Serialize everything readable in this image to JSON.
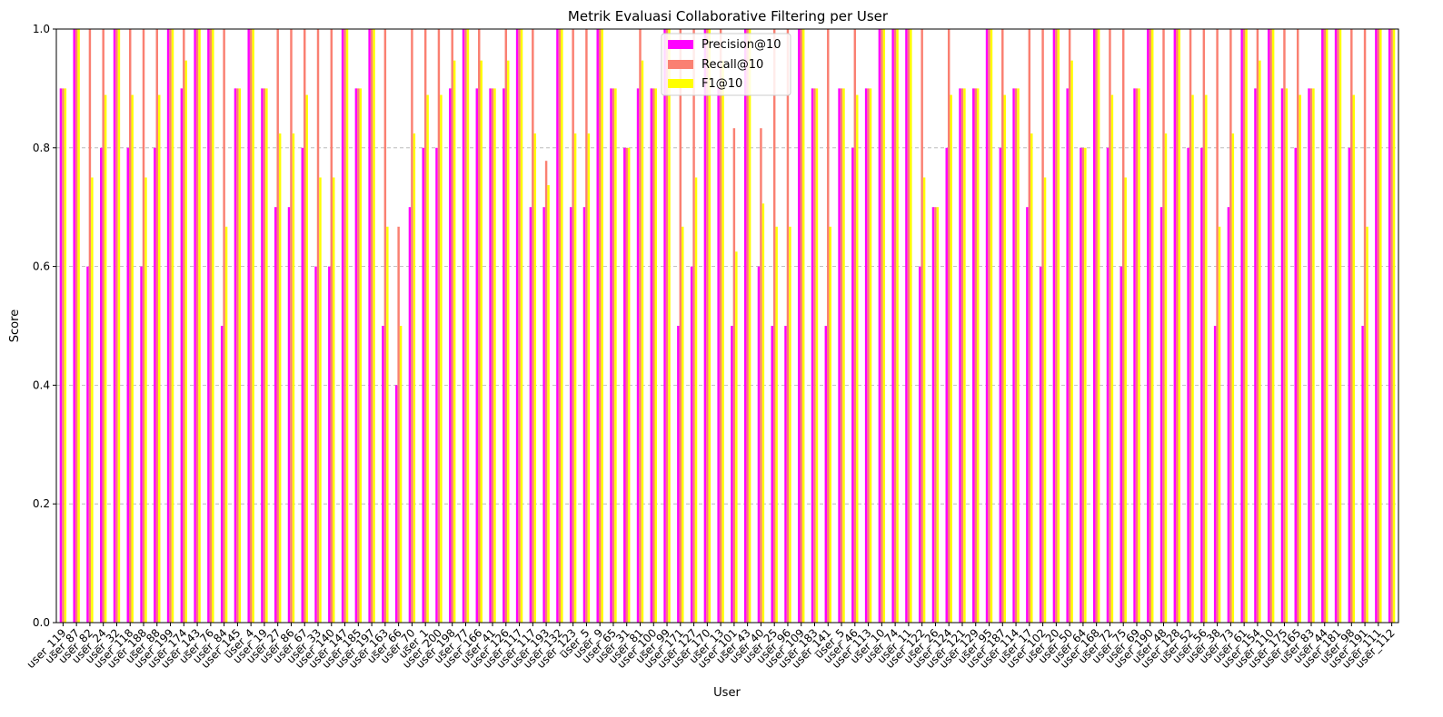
{
  "chart_data": {
    "type": "bar",
    "title": "Metrik Evaluasi Collaborative Filtering per User",
    "xlabel": "User",
    "ylabel": "Score",
    "ylim": [
      0,
      1.0
    ],
    "yticks": [
      "0.0",
      "0.2",
      "0.4",
      "0.6",
      "0.8",
      "1.0"
    ],
    "grid": "y-dashed",
    "legend_position": "top-center",
    "categories": [
      "user_119",
      "user_87",
      "user_82",
      "user_24",
      "user_32",
      "user_118",
      "user_188",
      "user_88",
      "user_199",
      "user_174",
      "user_143",
      "user_76",
      "user_84",
      "user_145",
      "user_4",
      "user_19",
      "user_27",
      "user_86",
      "user_67",
      "user_33",
      "user_140",
      "user_147",
      "user_185",
      "user_197",
      "user_163",
      "user_66",
      "user_70",
      "user_1",
      "user_200",
      "user_198",
      "user_77",
      "user_166",
      "user_41",
      "user_126",
      "user_117",
      "user_117",
      "user_193",
      "user_132",
      "user_123",
      "user_5",
      "user_9",
      "user_65",
      "user_31",
      "user_81",
      "user_100",
      "user_99",
      "user_171",
      "user_127",
      "user_170",
      "user_13",
      "user_101",
      "user_43",
      "user_40",
      "user_25",
      "user_96",
      "user_109",
      "user_183",
      "user_141",
      "user_5",
      "user_46",
      "user_113",
      "user_10",
      "user_74",
      "user_11",
      "user_122",
      "user_26",
      "user_124",
      "user_121",
      "user_129",
      "user_95",
      "user_187",
      "user_114",
      "user_17",
      "user_102",
      "user_20",
      "user_50",
      "user_64",
      "user_168",
      "user_72",
      "user_75",
      "user_69",
      "user_190",
      "user_48",
      "user_128",
      "user_52",
      "user_56",
      "user_38",
      "user_73",
      "user_61",
      "user_154",
      "user_110",
      "user_175",
      "user_165",
      "user_83",
      "user_44",
      "user_181",
      "user_98",
      "user_191",
      "user_111",
      "user_112"
    ],
    "series": [
      {
        "name": "Precision@10",
        "color": "#ff00ff",
        "values": [
          0.9,
          1.0,
          0.6,
          0.8,
          1.0,
          0.8,
          0.6,
          0.8,
          1.0,
          0.9,
          1.0,
          1.0,
          0.5,
          0.9,
          1.0,
          0.9,
          0.7,
          0.7,
          0.8,
          0.6,
          0.6,
          1.0,
          0.9,
          1.0,
          0.5,
          0.4,
          0.7,
          0.8,
          0.8,
          0.9,
          1.0,
          0.9,
          0.9,
          0.9,
          1.0,
          0.7,
          0.7,
          1.0,
          0.7,
          0.7,
          1.0,
          0.9,
          0.8,
          0.9,
          0.9,
          1.0,
          0.5,
          0.6,
          1.0,
          0.9,
          0.5,
          1.0,
          0.6,
          0.5,
          0.5,
          1.0,
          0.9,
          0.5,
          0.9,
          0.8,
          0.9,
          1.0,
          1.0,
          1.0,
          0.6,
          0.7,
          0.8,
          0.9,
          0.9,
          1.0,
          0.8,
          0.9,
          0.7,
          0.6,
          1.0,
          0.9,
          0.8,
          1.0,
          0.8,
          0.6,
          0.9,
          1.0,
          0.7,
          1.0,
          0.8,
          0.8,
          0.5,
          0.7,
          1.0,
          0.9,
          1.0,
          0.9,
          0.8,
          0.9,
          1.0,
          1.0,
          0.8,
          0.5,
          1.0,
          1.0
        ]
      },
      {
        "name": "Recall@10",
        "color": "#fa8072",
        "values": [
          0.9,
          1.0,
          1.0,
          1.0,
          1.0,
          1.0,
          1.0,
          1.0,
          1.0,
          1.0,
          1.0,
          1.0,
          1.0,
          0.9,
          1.0,
          0.9,
          1.0,
          1.0,
          1.0,
          1.0,
          1.0,
          1.0,
          0.9,
          1.0,
          1.0,
          0.667,
          1.0,
          1.0,
          1.0,
          1.0,
          1.0,
          1.0,
          0.9,
          1.0,
          1.0,
          1.0,
          0.778,
          1.0,
          1.0,
          1.0,
          1.0,
          0.9,
          0.8,
          1.0,
          0.9,
          1.0,
          1.0,
          1.0,
          1.0,
          1.0,
          0.833,
          1.0,
          0.833,
          1.0,
          1.0,
          1.0,
          0.9,
          1.0,
          0.9,
          1.0,
          0.9,
          1.0,
          1.0,
          1.0,
          1.0,
          0.7,
          1.0,
          0.9,
          0.9,
          1.0,
          1.0,
          0.9,
          1.0,
          1.0,
          1.0,
          1.0,
          0.8,
          1.0,
          1.0,
          1.0,
          0.9,
          1.0,
          1.0,
          1.0,
          1.0,
          1.0,
          1.0,
          1.0,
          1.0,
          1.0,
          1.0,
          1.0,
          1.0,
          0.9,
          1.0,
          1.0,
          1.0,
          1.0,
          1.0,
          1.0
        ]
      },
      {
        "name": "F1@10",
        "color": "#ffff00",
        "values": [
          0.9,
          1.0,
          0.75,
          0.889,
          1.0,
          0.889,
          0.75,
          0.889,
          1.0,
          0.947,
          1.0,
          1.0,
          0.667,
          0.9,
          1.0,
          0.9,
          0.824,
          0.824,
          0.889,
          0.75,
          0.75,
          1.0,
          0.9,
          1.0,
          0.667,
          0.5,
          0.824,
          0.889,
          0.889,
          0.947,
          1.0,
          0.947,
          0.9,
          0.947,
          1.0,
          0.824,
          0.737,
          1.0,
          0.824,
          0.824,
          1.0,
          0.9,
          0.8,
          0.947,
          0.9,
          1.0,
          0.667,
          0.75,
          1.0,
          0.947,
          0.625,
          1.0,
          0.706,
          0.667,
          0.667,
          1.0,
          0.9,
          0.667,
          0.9,
          0.889,
          0.9,
          1.0,
          1.0,
          1.0,
          0.75,
          0.7,
          0.889,
          0.9,
          0.9,
          1.0,
          0.889,
          0.9,
          0.824,
          0.75,
          1.0,
          0.947,
          0.8,
          1.0,
          0.889,
          0.75,
          0.9,
          1.0,
          0.824,
          1.0,
          0.889,
          0.889,
          0.667,
          0.824,
          1.0,
          0.947,
          1.0,
          0.9,
          0.889,
          0.9,
          1.0,
          1.0,
          0.889,
          0.667,
          1.0,
          1.0
        ]
      }
    ]
  }
}
